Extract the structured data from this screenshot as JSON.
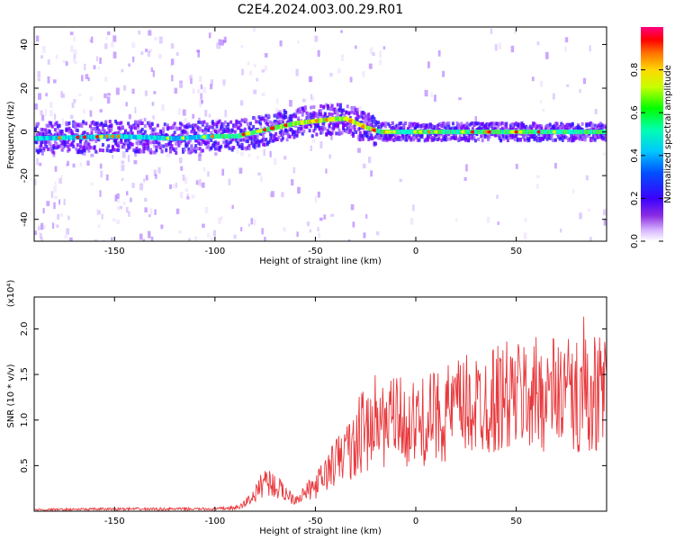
{
  "title": "C2E4.2024.003.00.29.R01",
  "chart_data": [
    {
      "type": "heatmap",
      "xlabel": "Height of straight line (km)",
      "ylabel": "Frequency (Hz)",
      "xlim": [
        -190,
        95
      ],
      "ylim": [
        -50,
        48
      ],
      "xticks": [
        -150,
        -100,
        -50,
        0,
        50
      ],
      "yticks": [
        -40,
        -20,
        0,
        20,
        40
      ],
      "ridge": [
        [
          -190,
          -3
        ],
        [
          -150,
          -2
        ],
        [
          -120,
          -3
        ],
        [
          -100,
          -2
        ],
        [
          -90,
          -2
        ],
        [
          -80,
          0
        ],
        [
          -70,
          2
        ],
        [
          -60,
          4
        ],
        [
          -50,
          5
        ],
        [
          -40,
          6
        ],
        [
          -35,
          6
        ],
        [
          -30,
          4
        ],
        [
          -25,
          2
        ],
        [
          -18,
          0
        ],
        [
          0,
          0
        ],
        [
          50,
          0
        ],
        [
          95,
          0
        ]
      ],
      "colorbar": {
        "label": "Normalized spectral amplitude",
        "range": [
          0,
          1
        ],
        "ticks": [
          0.0,
          0.2,
          0.4,
          0.6,
          0.8
        ]
      }
    },
    {
      "type": "line",
      "xlabel": "Height of straight line (km)",
      "ylabel": "SNR (10 * v/v)",
      "multiplier": "(x10⁴)",
      "xlim": [
        -190,
        95
      ],
      "ylim": [
        0,
        2.35
      ],
      "xticks": [
        -150,
        -100,
        -50,
        0,
        50
      ],
      "yticks": [
        0.5,
        1.0,
        1.5,
        2.0
      ],
      "color": "#e8383c",
      "envelope": [
        [
          -190,
          0.02
        ],
        [
          -150,
          0.03
        ],
        [
          -100,
          0.03
        ],
        [
          -88,
          0.05
        ],
        [
          -80,
          0.2
        ],
        [
          -75,
          0.4
        ],
        [
          -70,
          0.3
        ],
        [
          -60,
          0.15
        ],
        [
          -50,
          0.3
        ],
        [
          -40,
          0.6
        ],
        [
          -30,
          0.8
        ],
        [
          -20,
          1.0
        ],
        [
          -10,
          1.1
        ],
        [
          0,
          1.05
        ],
        [
          10,
          1.15
        ],
        [
          20,
          1.25
        ],
        [
          30,
          1.3
        ],
        [
          40,
          1.38
        ],
        [
          50,
          1.4
        ],
        [
          60,
          1.42
        ],
        [
          70,
          1.45
        ],
        [
          80,
          1.4
        ],
        [
          90,
          1.45
        ],
        [
          95,
          1.5
        ]
      ]
    }
  ]
}
